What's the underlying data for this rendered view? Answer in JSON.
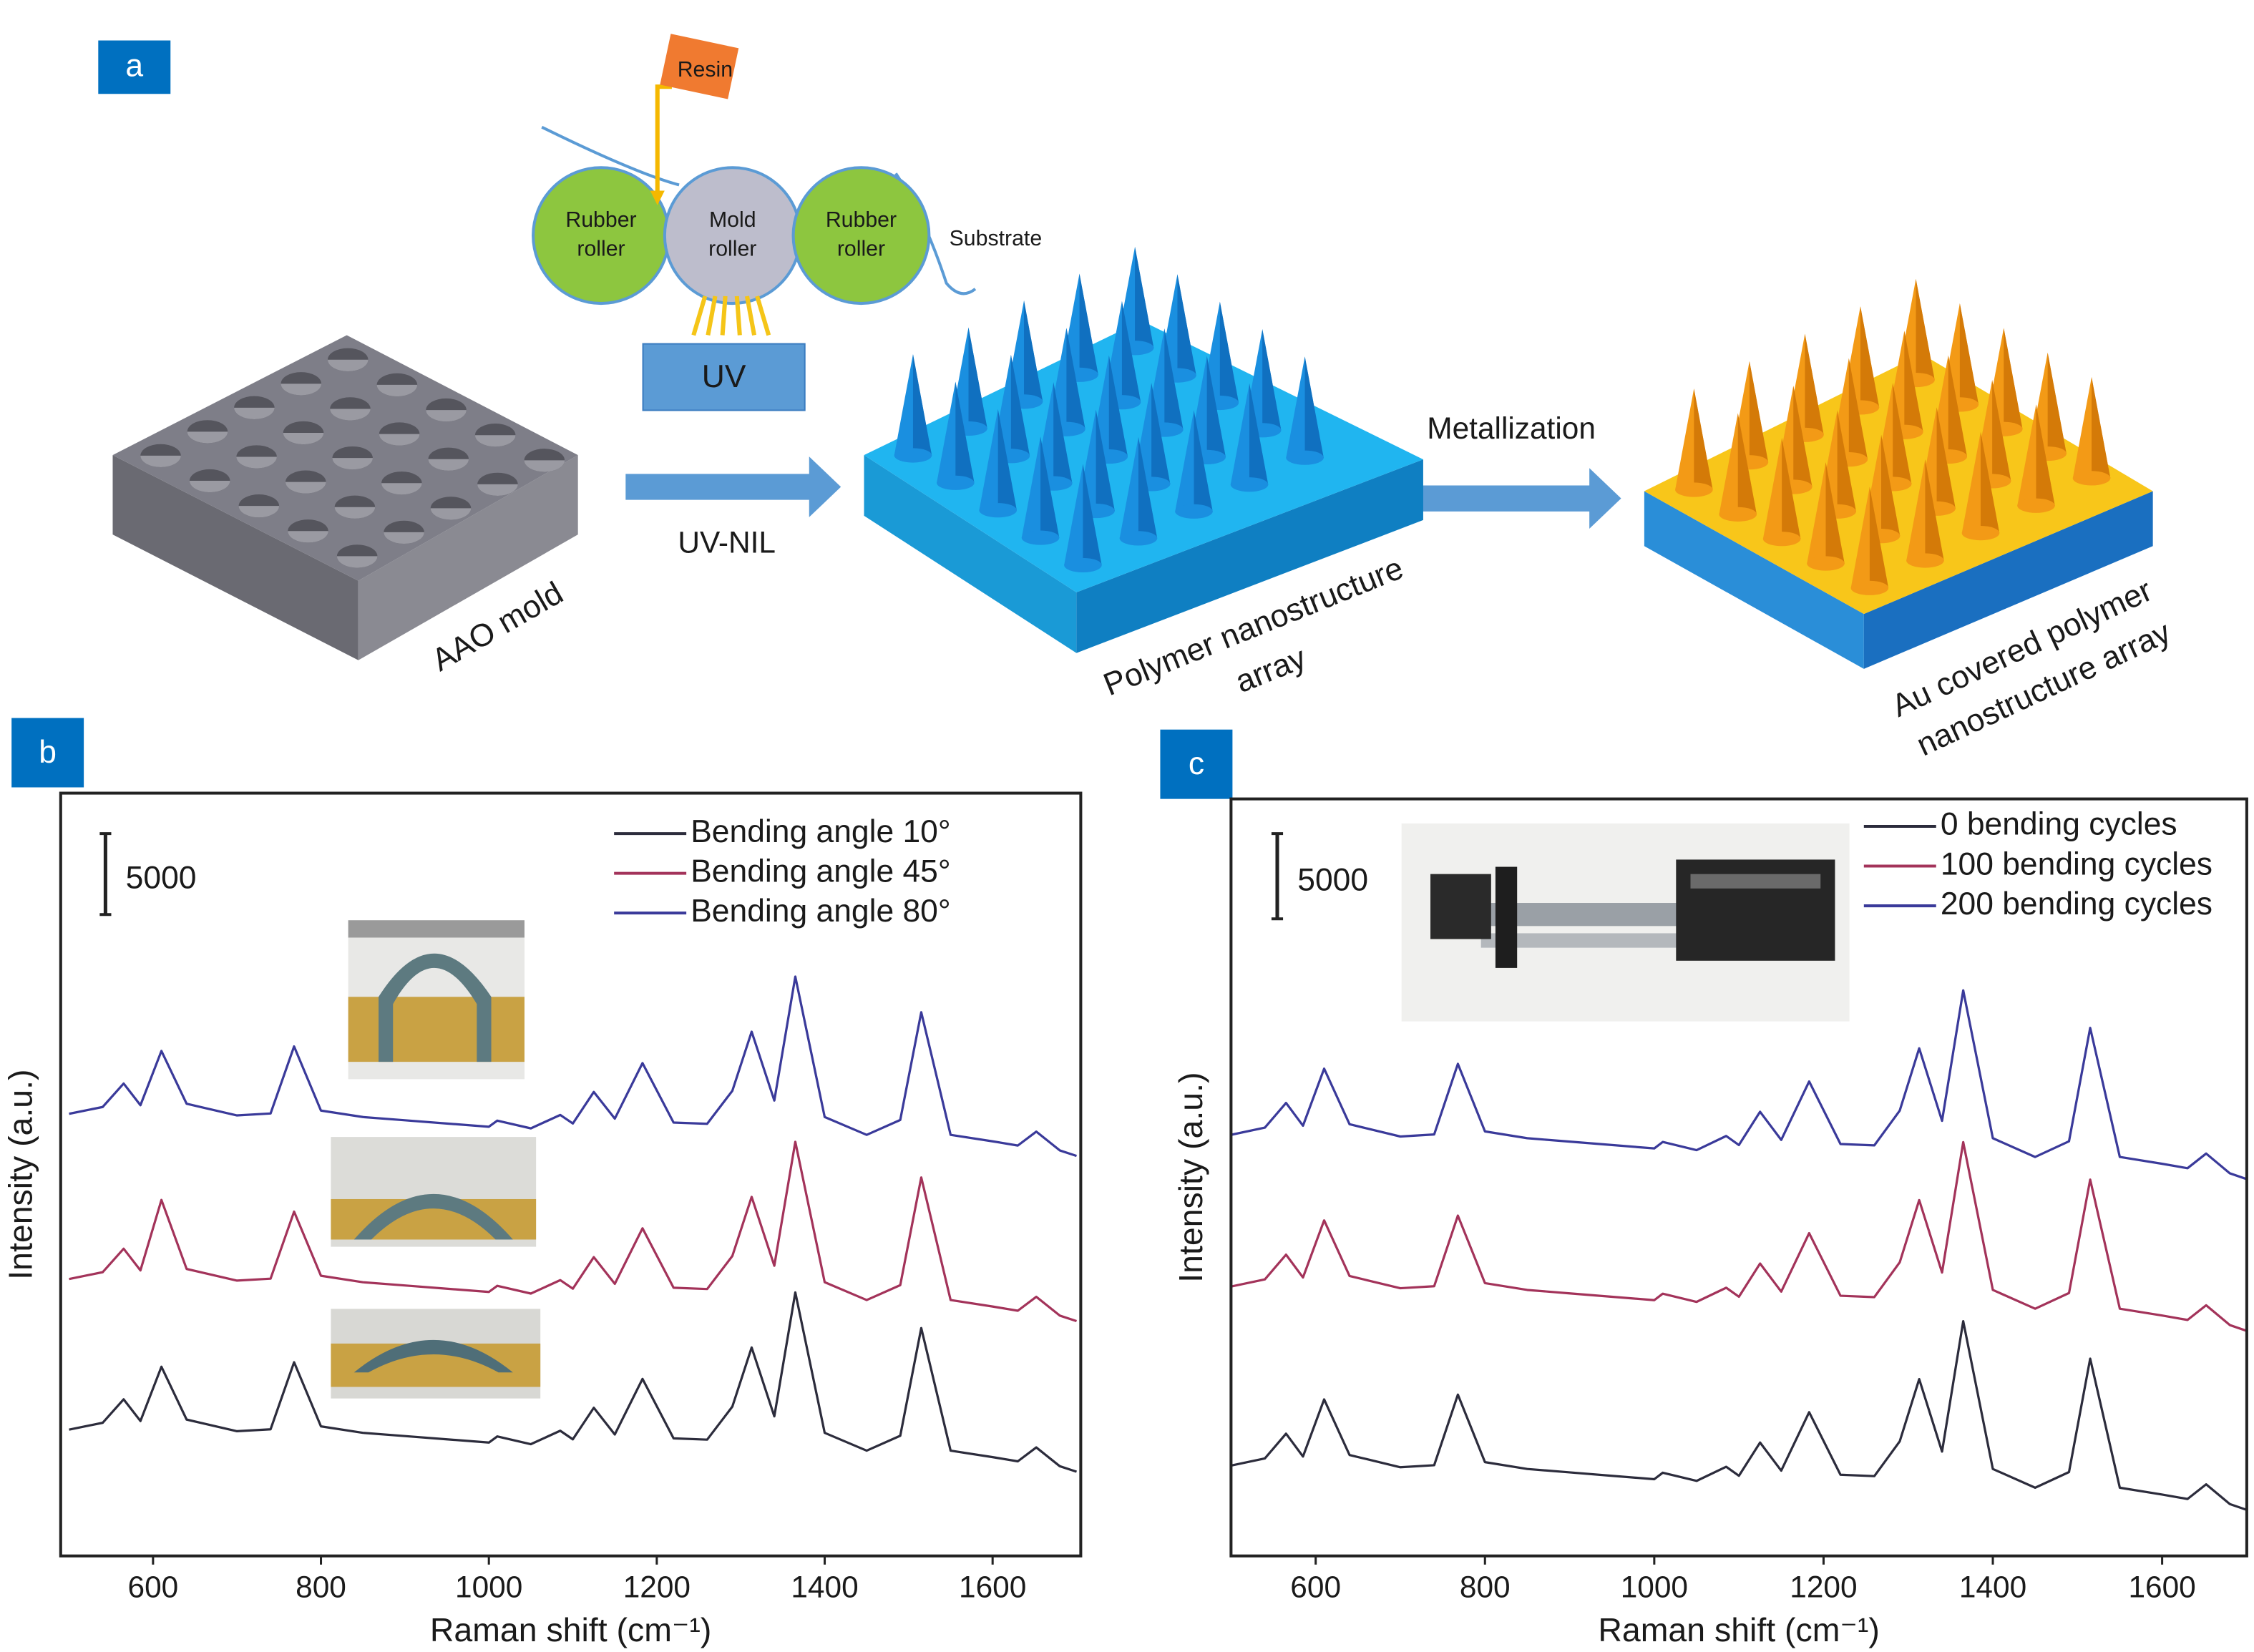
{
  "figure": {
    "panel": "a",
    "resin": "Resin",
    "rubber_roller_left": [
      "Rubber",
      "roller"
    ],
    "mold_roller": [
      "Mold",
      "roller"
    ],
    "rubber_roller_right": [
      "Rubber",
      "roller"
    ],
    "substrate": "Substrate",
    "uv": "UV",
    "uv_nil": "UV-NIL",
    "metallization": "Metallization",
    "aao_mold": "AAO mold",
    "polymer_array": [
      "Polymer nanostructure",
      "array"
    ],
    "au_array": [
      "Au covered polymer",
      "nanostructure array"
    ]
  },
  "chart_data": [
    {
      "type": "line",
      "panel": "b",
      "xlabel": "Raman shift (cm⁻¹)",
      "ylabel": "Intensity (a.u.)",
      "x": [
        500,
        540,
        565,
        585,
        610,
        640,
        660,
        700,
        740,
        768,
        800,
        850,
        900,
        950,
        1000,
        1010,
        1050,
        1085,
        1100,
        1125,
        1150,
        1183,
        1220,
        1260,
        1290,
        1313,
        1340,
        1365,
        1400,
        1450,
        1490,
        1515,
        1550,
        1600,
        1630,
        1652,
        1680,
        1700
      ],
      "xlim": [
        490,
        1705
      ],
      "xticks": [
        600,
        800,
        1000,
        1200,
        1400,
        1600
      ],
      "ylim": [
        0,
        47100
      ],
      "scale_bar": 5000,
      "legend": "upper right",
      "series": [
        {
          "name": "Bending angle 10°",
          "color": "#2c2c3c",
          "values": [
            7800,
            8220,
            9670,
            8330,
            11680,
            8420,
            8180,
            7700,
            7820,
            11960,
            8000,
            7600,
            7400,
            7200,
            7000,
            7380,
            6900,
            7730,
            7200,
            9150,
            7500,
            10930,
            7260,
            7180,
            9220,
            12870,
            8620,
            16270,
            7600,
            6500,
            7420,
            14070,
            6500,
            6100,
            5840,
            6700,
            5540,
            5200
          ]
        },
        {
          "name": "Bending angle 45°",
          "color": "#a3335a",
          "values": [
            17100,
            17520,
            18970,
            17630,
            21980,
            17720,
            17480,
            17000,
            17120,
            21260,
            17300,
            16900,
            16700,
            16500,
            16300,
            16680,
            16200,
            17030,
            16500,
            18450,
            16800,
            20230,
            16560,
            16480,
            18520,
            22170,
            17920,
            25570,
            16900,
            15800,
            16720,
            23370,
            15800,
            15400,
            15140,
            16000,
            14840,
            14500
          ]
        },
        {
          "name": "Bending angle 80°",
          "color": "#3a3a9a",
          "values": [
            27300,
            27720,
            29170,
            27830,
            31180,
            27920,
            27680,
            27200,
            27320,
            31460,
            27500,
            27100,
            26900,
            26700,
            26500,
            26880,
            26400,
            27230,
            26700,
            28650,
            27000,
            30430,
            26760,
            26680,
            28720,
            32370,
            28120,
            35770,
            27100,
            26000,
            26920,
            33570,
            26000,
            25600,
            25340,
            26200,
            25040,
            24700
          ]
        }
      ]
    },
    {
      "type": "line",
      "panel": "c",
      "xlabel": "Raman shift (cm⁻¹)",
      "ylabel": "Intensity (a.u.)",
      "x": [
        500,
        540,
        565,
        585,
        610,
        640,
        660,
        700,
        740,
        768,
        800,
        850,
        900,
        950,
        1000,
        1010,
        1050,
        1085,
        1100,
        1125,
        1150,
        1183,
        1220,
        1260,
        1290,
        1313,
        1340,
        1365,
        1400,
        1450,
        1490,
        1515,
        1550,
        1600,
        1630,
        1652,
        1680,
        1700
      ],
      "xlim": [
        500,
        1700
      ],
      "xticks": [
        600,
        800,
        1000,
        1200,
        1400,
        1600
      ],
      "ylim": [
        0,
        44400
      ],
      "scale_bar": 5000,
      "legend": "upper right",
      "series": [
        {
          "name": "0 bending cycles",
          "color": "#2c2c3c",
          "values": [
            5300,
            5720,
            7170,
            5830,
            9180,
            5920,
            5680,
            5200,
            5320,
            9460,
            5500,
            5100,
            4900,
            4700,
            4500,
            4880,
            4400,
            5230,
            4700,
            6650,
            5000,
            8430,
            4760,
            4680,
            6720,
            10370,
            6120,
            13770,
            5100,
            4000,
            4920,
            11570,
            4000,
            3600,
            3340,
            4200,
            3040,
            2700
          ]
        },
        {
          "name": "100 bending cycles",
          "color": "#a3335a",
          "values": [
            15800,
            16220,
            17670,
            16330,
            19680,
            16420,
            16180,
            15700,
            15820,
            19960,
            16000,
            15600,
            15400,
            15200,
            15000,
            15380,
            14900,
            15730,
            15200,
            17150,
            15500,
            18930,
            15260,
            15180,
            17220,
            20870,
            16620,
            24270,
            15600,
            14500,
            15420,
            22070,
            14500,
            14100,
            13840,
            14700,
            13540,
            13200
          ]
        },
        {
          "name": "200 bending cycles",
          "color": "#3a3a9a",
          "values": [
            24700,
            25120,
            26570,
            25230,
            28580,
            25320,
            25080,
            24600,
            24720,
            28860,
            24900,
            24500,
            24300,
            24100,
            23900,
            24280,
            23800,
            24630,
            24100,
            26050,
            24400,
            27830,
            24160,
            24080,
            26120,
            29770,
            25520,
            33170,
            24500,
            23400,
            24320,
            30970,
            23400,
            23000,
            22740,
            23600,
            22440,
            22100
          ]
        }
      ]
    }
  ]
}
